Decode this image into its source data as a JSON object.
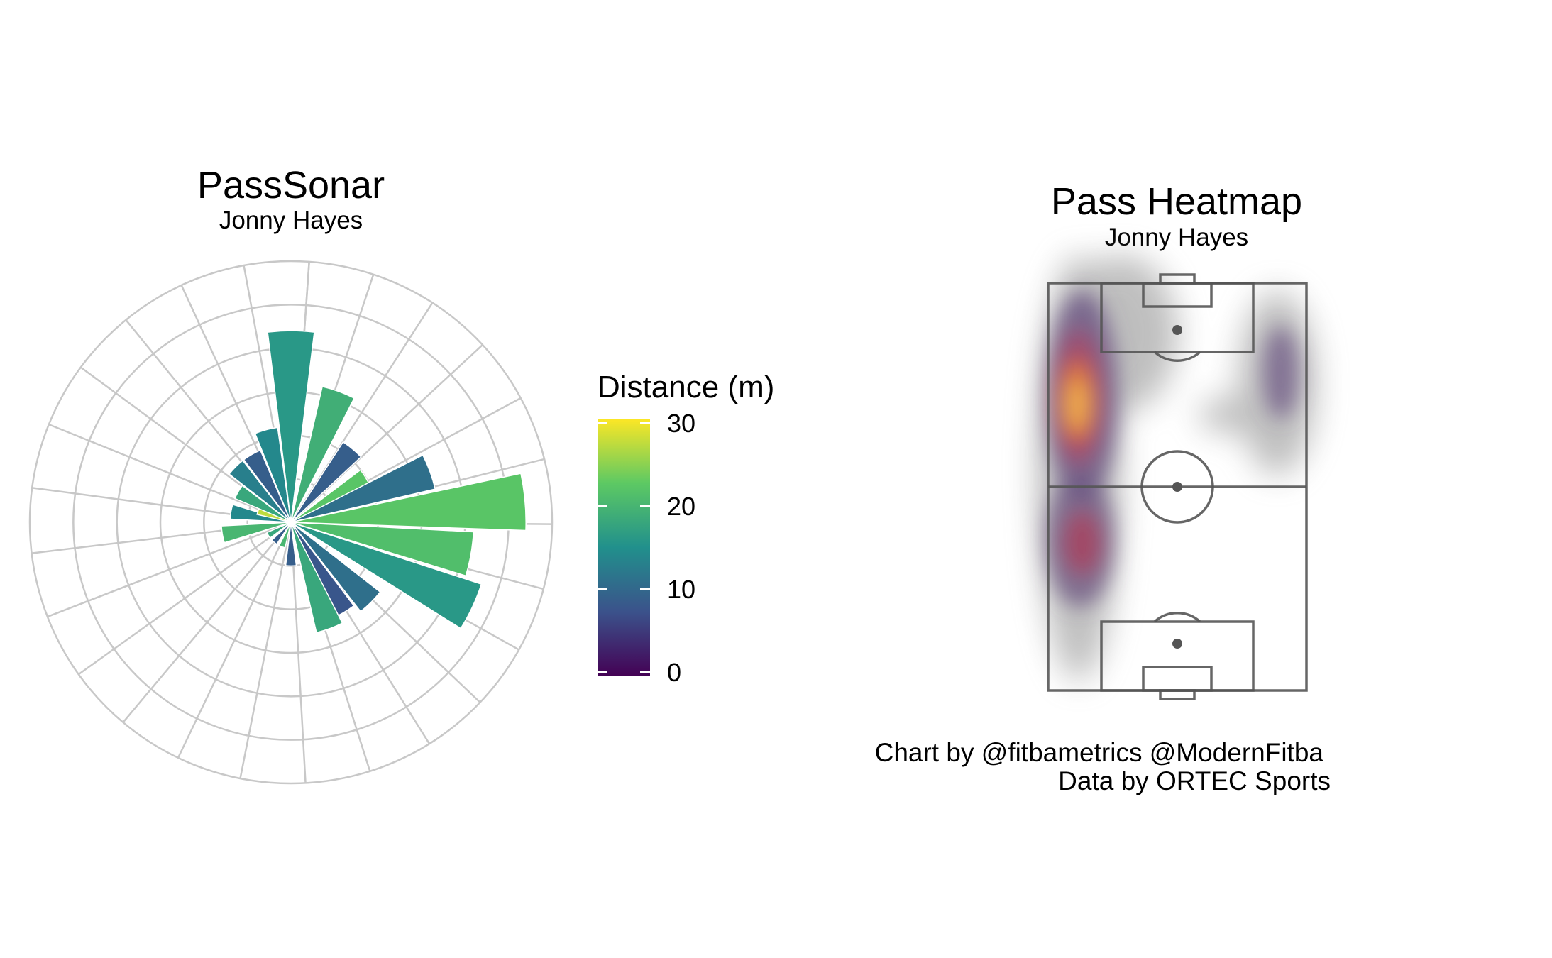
{
  "sonar": {
    "title": "PassSonar",
    "subtitle": "Jonny Hayes"
  },
  "legend": {
    "title": "Distance (m)",
    "ticks": [
      0,
      10,
      20,
      30
    ],
    "tick_labels": [
      "0",
      "10",
      "20",
      "30"
    ],
    "colors": [
      "#440154",
      "#3b528b",
      "#21908c",
      "#5dc963",
      "#fde725"
    ]
  },
  "heatmap": {
    "title": "Pass Heatmap",
    "subtitle": "Jonny Hayes"
  },
  "caption": {
    "line1": "Chart by @fitbametrics @ModernFitba",
    "line2": "Data by ORTEC Sports"
  },
  "chart_data": [
    {
      "type": "polar-bar",
      "title": "PassSonar",
      "subtitle": "Jonny Hayes",
      "angle_unit": "degrees clockwise from up",
      "radial_scale": {
        "max": 30,
        "rings": 5
      },
      "color_scale": {
        "name": "viridis",
        "min": 0,
        "max": 30,
        "legend_title": "Distance (m)"
      },
      "bins": [
        {
          "angle": 0,
          "length": 22,
          "distance": 16
        },
        {
          "angle": 20,
          "length": 16,
          "distance": 19
        },
        {
          "angle": 40,
          "length": 11,
          "distance": 9
        },
        {
          "angle": 60,
          "length": 10,
          "distance": 22
        },
        {
          "angle": 70,
          "length": 17,
          "distance": 11
        },
        {
          "angle": 85,
          "length": 27,
          "distance": 22
        },
        {
          "angle": 100,
          "length": 21,
          "distance": 21
        },
        {
          "angle": 115,
          "length": 23,
          "distance": 16
        },
        {
          "angle": 135,
          "length": 13,
          "distance": 11
        },
        {
          "angle": 150,
          "length": 12,
          "distance": 8
        },
        {
          "angle": 160,
          "length": 13,
          "distance": 18
        },
        {
          "angle": 180,
          "length": 5,
          "distance": 9
        },
        {
          "angle": 200,
          "length": 3,
          "distance": 20
        },
        {
          "angle": 220,
          "length": 3,
          "distance": 9
        },
        {
          "angle": 240,
          "length": 3,
          "distance": 18
        },
        {
          "angle": 260,
          "length": 8,
          "distance": 20
        },
        {
          "angle": 280,
          "length": 7,
          "distance": 14
        },
        {
          "angle": 290,
          "length": 4,
          "distance": 27
        },
        {
          "angle": 300,
          "length": 7,
          "distance": 18
        },
        {
          "angle": 315,
          "length": 9,
          "distance": 13
        },
        {
          "angle": 330,
          "length": 9,
          "distance": 9
        },
        {
          "angle": 345,
          "length": 11,
          "distance": 14
        }
      ]
    },
    {
      "type": "heatmap",
      "title": "Pass Heatmap",
      "subtitle": "Jonny Hayes",
      "pitch_orientation": "vertical",
      "density_hotspots": [
        {
          "x": 0.1,
          "y": 0.31,
          "level": "high"
        },
        {
          "x": 0.12,
          "y": 0.65,
          "level": "medium"
        },
        {
          "x": 0.9,
          "y": 0.25,
          "level": "low"
        }
      ]
    }
  ]
}
